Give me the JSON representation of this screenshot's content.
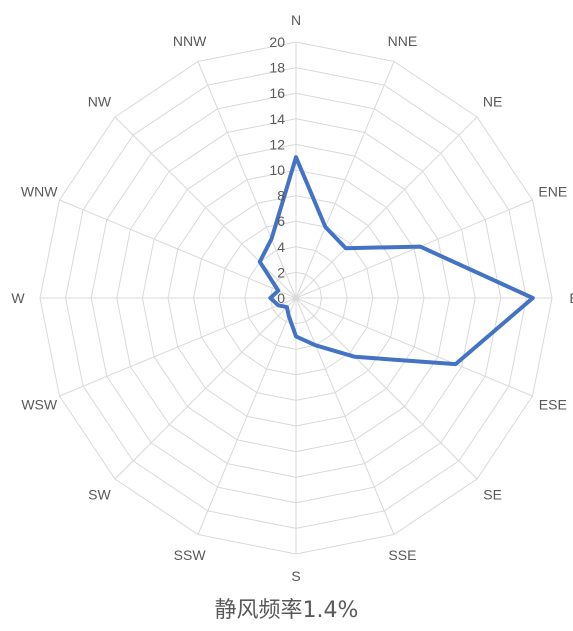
{
  "chart_data": {
    "type": "radar",
    "categories": [
      "N",
      "NNE",
      "NE",
      "ENE",
      "E",
      "ESE",
      "SE",
      "SSE",
      "S",
      "SSW",
      "SW",
      "WSW",
      "W",
      "WNW",
      "NW",
      "NNW"
    ],
    "series": [
      {
        "values": [
          11,
          6,
          5.5,
          10.5,
          18.5,
          13.5,
          6.5,
          4,
          3,
          1.5,
          1,
          1.5,
          2,
          1.5,
          4,
          5
        ]
      }
    ],
    "rlim": [
      0,
      20
    ],
    "ticks": [
      0,
      2,
      4,
      6,
      8,
      10,
      12,
      14,
      16,
      18,
      20
    ],
    "line_color": "#4472c4",
    "grid_color": "#d9d9d9"
  },
  "caption": "静风频率1.4%"
}
